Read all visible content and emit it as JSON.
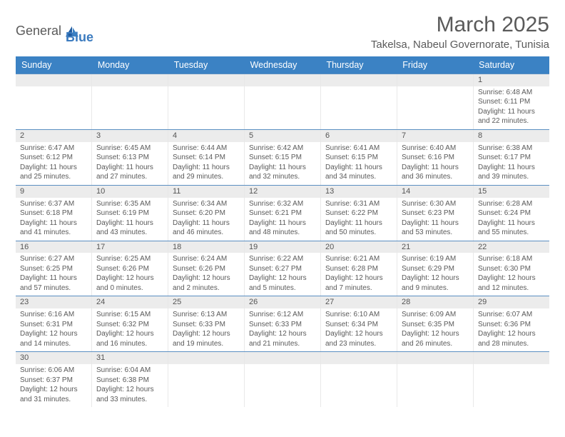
{
  "brand": {
    "part1": "General",
    "part2": "Blue"
  },
  "title": "March 2025",
  "location": "Takelsa, Nabeul Governorate, Tunisia",
  "colors": {
    "header_bg": "#3b82c4",
    "header_text": "#ffffff",
    "daynum_bg": "#ececec",
    "week_border": "#5b8fc2",
    "text": "#5a5a5a",
    "logo_accent": "#3b7bbf"
  },
  "day_headers": [
    "Sunday",
    "Monday",
    "Tuesday",
    "Wednesday",
    "Thursday",
    "Friday",
    "Saturday"
  ],
  "weeks": [
    [
      {
        "blank": true
      },
      {
        "blank": true
      },
      {
        "blank": true
      },
      {
        "blank": true
      },
      {
        "blank": true
      },
      {
        "blank": true
      },
      {
        "day": "1",
        "sunrise": "Sunrise: 6:48 AM",
        "sunset": "Sunset: 6:11 PM",
        "daylight": "Daylight: 11 hours and 22 minutes."
      }
    ],
    [
      {
        "day": "2",
        "sunrise": "Sunrise: 6:47 AM",
        "sunset": "Sunset: 6:12 PM",
        "daylight": "Daylight: 11 hours and 25 minutes."
      },
      {
        "day": "3",
        "sunrise": "Sunrise: 6:45 AM",
        "sunset": "Sunset: 6:13 PM",
        "daylight": "Daylight: 11 hours and 27 minutes."
      },
      {
        "day": "4",
        "sunrise": "Sunrise: 6:44 AM",
        "sunset": "Sunset: 6:14 PM",
        "daylight": "Daylight: 11 hours and 29 minutes."
      },
      {
        "day": "5",
        "sunrise": "Sunrise: 6:42 AM",
        "sunset": "Sunset: 6:15 PM",
        "daylight": "Daylight: 11 hours and 32 minutes."
      },
      {
        "day": "6",
        "sunrise": "Sunrise: 6:41 AM",
        "sunset": "Sunset: 6:15 PM",
        "daylight": "Daylight: 11 hours and 34 minutes."
      },
      {
        "day": "7",
        "sunrise": "Sunrise: 6:40 AM",
        "sunset": "Sunset: 6:16 PM",
        "daylight": "Daylight: 11 hours and 36 minutes."
      },
      {
        "day": "8",
        "sunrise": "Sunrise: 6:38 AM",
        "sunset": "Sunset: 6:17 PM",
        "daylight": "Daylight: 11 hours and 39 minutes."
      }
    ],
    [
      {
        "day": "9",
        "sunrise": "Sunrise: 6:37 AM",
        "sunset": "Sunset: 6:18 PM",
        "daylight": "Daylight: 11 hours and 41 minutes."
      },
      {
        "day": "10",
        "sunrise": "Sunrise: 6:35 AM",
        "sunset": "Sunset: 6:19 PM",
        "daylight": "Daylight: 11 hours and 43 minutes."
      },
      {
        "day": "11",
        "sunrise": "Sunrise: 6:34 AM",
        "sunset": "Sunset: 6:20 PM",
        "daylight": "Daylight: 11 hours and 46 minutes."
      },
      {
        "day": "12",
        "sunrise": "Sunrise: 6:32 AM",
        "sunset": "Sunset: 6:21 PM",
        "daylight": "Daylight: 11 hours and 48 minutes."
      },
      {
        "day": "13",
        "sunrise": "Sunrise: 6:31 AM",
        "sunset": "Sunset: 6:22 PM",
        "daylight": "Daylight: 11 hours and 50 minutes."
      },
      {
        "day": "14",
        "sunrise": "Sunrise: 6:30 AM",
        "sunset": "Sunset: 6:23 PM",
        "daylight": "Daylight: 11 hours and 53 minutes."
      },
      {
        "day": "15",
        "sunrise": "Sunrise: 6:28 AM",
        "sunset": "Sunset: 6:24 PM",
        "daylight": "Daylight: 11 hours and 55 minutes."
      }
    ],
    [
      {
        "day": "16",
        "sunrise": "Sunrise: 6:27 AM",
        "sunset": "Sunset: 6:25 PM",
        "daylight": "Daylight: 11 hours and 57 minutes."
      },
      {
        "day": "17",
        "sunrise": "Sunrise: 6:25 AM",
        "sunset": "Sunset: 6:26 PM",
        "daylight": "Daylight: 12 hours and 0 minutes."
      },
      {
        "day": "18",
        "sunrise": "Sunrise: 6:24 AM",
        "sunset": "Sunset: 6:26 PM",
        "daylight": "Daylight: 12 hours and 2 minutes."
      },
      {
        "day": "19",
        "sunrise": "Sunrise: 6:22 AM",
        "sunset": "Sunset: 6:27 PM",
        "daylight": "Daylight: 12 hours and 5 minutes."
      },
      {
        "day": "20",
        "sunrise": "Sunrise: 6:21 AM",
        "sunset": "Sunset: 6:28 PM",
        "daylight": "Daylight: 12 hours and 7 minutes."
      },
      {
        "day": "21",
        "sunrise": "Sunrise: 6:19 AM",
        "sunset": "Sunset: 6:29 PM",
        "daylight": "Daylight: 12 hours and 9 minutes."
      },
      {
        "day": "22",
        "sunrise": "Sunrise: 6:18 AM",
        "sunset": "Sunset: 6:30 PM",
        "daylight": "Daylight: 12 hours and 12 minutes."
      }
    ],
    [
      {
        "day": "23",
        "sunrise": "Sunrise: 6:16 AM",
        "sunset": "Sunset: 6:31 PM",
        "daylight": "Daylight: 12 hours and 14 minutes."
      },
      {
        "day": "24",
        "sunrise": "Sunrise: 6:15 AM",
        "sunset": "Sunset: 6:32 PM",
        "daylight": "Daylight: 12 hours and 16 minutes."
      },
      {
        "day": "25",
        "sunrise": "Sunrise: 6:13 AM",
        "sunset": "Sunset: 6:33 PM",
        "daylight": "Daylight: 12 hours and 19 minutes."
      },
      {
        "day": "26",
        "sunrise": "Sunrise: 6:12 AM",
        "sunset": "Sunset: 6:33 PM",
        "daylight": "Daylight: 12 hours and 21 minutes."
      },
      {
        "day": "27",
        "sunrise": "Sunrise: 6:10 AM",
        "sunset": "Sunset: 6:34 PM",
        "daylight": "Daylight: 12 hours and 23 minutes."
      },
      {
        "day": "28",
        "sunrise": "Sunrise: 6:09 AM",
        "sunset": "Sunset: 6:35 PM",
        "daylight": "Daylight: 12 hours and 26 minutes."
      },
      {
        "day": "29",
        "sunrise": "Sunrise: 6:07 AM",
        "sunset": "Sunset: 6:36 PM",
        "daylight": "Daylight: 12 hours and 28 minutes."
      }
    ],
    [
      {
        "day": "30",
        "sunrise": "Sunrise: 6:06 AM",
        "sunset": "Sunset: 6:37 PM",
        "daylight": "Daylight: 12 hours and 31 minutes."
      },
      {
        "day": "31",
        "sunrise": "Sunrise: 6:04 AM",
        "sunset": "Sunset: 6:38 PM",
        "daylight": "Daylight: 12 hours and 33 minutes."
      },
      {
        "blank": true
      },
      {
        "blank": true
      },
      {
        "blank": true
      },
      {
        "blank": true
      },
      {
        "blank": true
      }
    ]
  ]
}
